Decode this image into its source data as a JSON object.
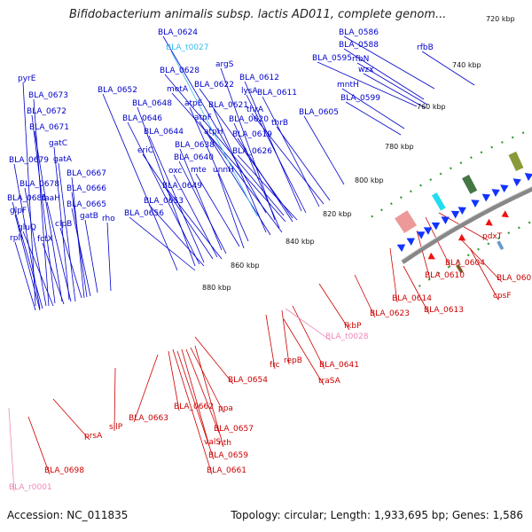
{
  "title": "Bifidobacterium animalis subsp. lactis AD011, complete genom...",
  "footer": {
    "accession": "Accession: NC_011835",
    "summary": "Topology: circular; Length: 1,933,695 bp; Genes: 1,586"
  },
  "colors": {
    "forward_label": "#0000cc",
    "reverse_label": "#cc0000",
    "trna_label": "#33bbee",
    "rrna_label": "#ee88bb",
    "backbone": "#888888"
  },
  "kbp_marks": [
    "720 kbp",
    "740 kbp",
    "760 kbp",
    "780 kbp",
    "800 kbp",
    "820 kbp",
    "840 kbp",
    "860 kbp",
    "880 kbp"
  ],
  "labels": {
    "forward": [
      "BLA_0624",
      "argS",
      "BLA_0628",
      "metA",
      "BLA_0622",
      "BLA_0612",
      "lysA",
      "BLA_0611",
      "thrA",
      "thrB",
      "BLA_0605",
      "atpE",
      "BLA_0621",
      "atpF",
      "BLA_0620",
      "atpH",
      "BLA_0619",
      "BLA_0626",
      "BLA_0638",
      "BLA_0640",
      "mte",
      "unnH",
      "oxc",
      "BLA_0649",
      "BLA_0653",
      "BLA_0656",
      "eriC",
      "BLA_0644",
      "BLA_0646",
      "BLA_0648",
      "BLA_0652",
      "pyrE",
      "BLA_0673",
      "BLA_0672",
      "BLA_0671",
      "gatC",
      "gatA",
      "BLA_0679",
      "BLA_0667",
      "BLA_0678",
      "BLA_0666",
      "BLA_0681",
      "faaH",
      "BLA_0665",
      "glpF",
      "clpB",
      "gatB",
      "rho",
      "gluQ",
      "fctX",
      "rplI",
      "BLA_0586",
      "BLA_0588",
      "rfbB",
      "BLA_0595",
      "rfbN",
      "wzx",
      "mntH",
      "BLA_0599"
    ],
    "trna_forward": [
      "BLA_t0027"
    ],
    "reverse": [
      "pdxT",
      "BLA_0604",
      "BLA_0602",
      "BLA_0610",
      "cpsF",
      "BLA_0614",
      "BLA_0613",
      "BLA_0623",
      "fkbP",
      "BLA_0641",
      "repB",
      "frc",
      "traSA",
      "BLA_0654",
      "BLA_0663",
      "BLA_0662",
      "ppa",
      "BLA_0657",
      "nth",
      "valS",
      "BLA_0659",
      "BLA_0661",
      "silP",
      "prsA",
      "BLA_0698"
    ],
    "trna_reverse": [
      "BLA_t0028"
    ],
    "rrna": [
      "BLA_r0001"
    ]
  }
}
